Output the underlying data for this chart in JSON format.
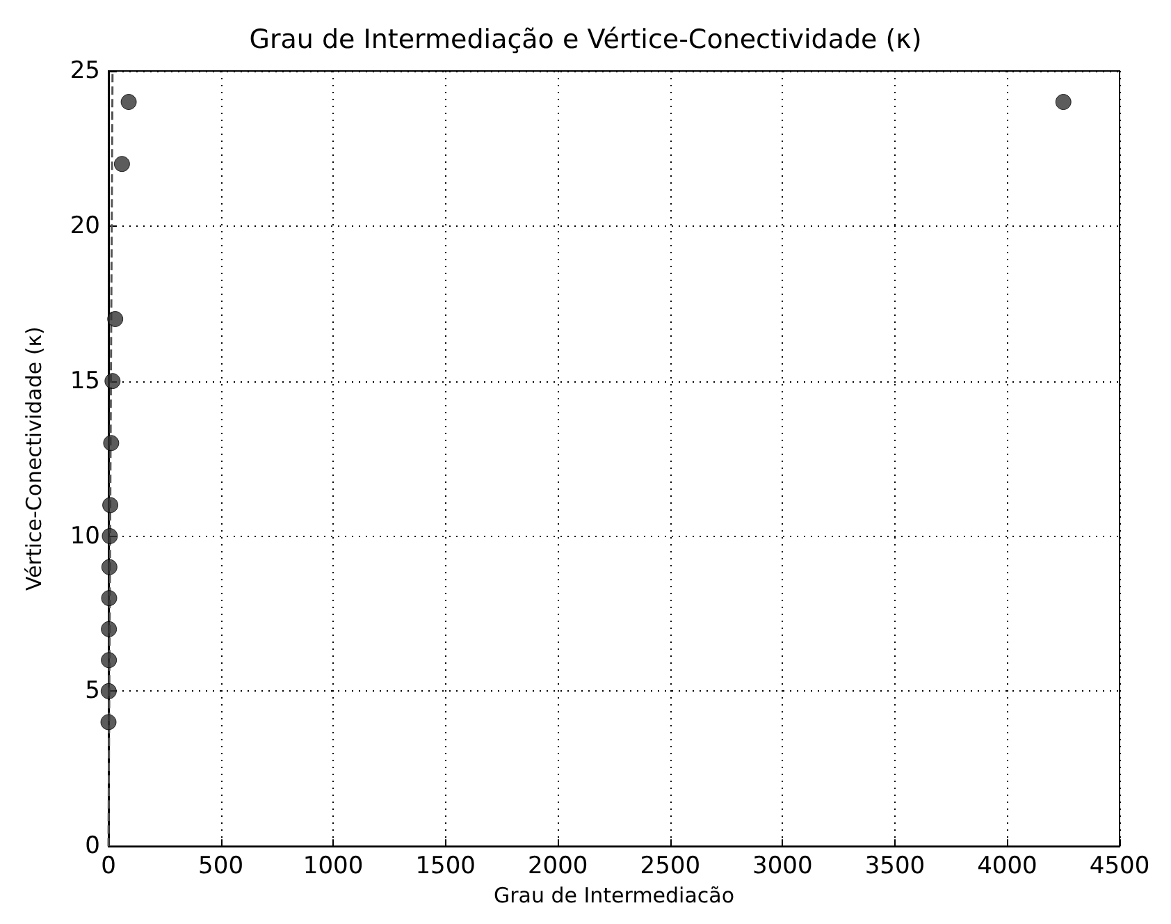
{
  "chart_data": {
    "type": "scatter",
    "title": "Grau de Intermediação e Vértice-Conectividade (κ)",
    "xlabel": "Grau de Intermediacão",
    "ylabel": "Vértice-Conectividade (κ)",
    "series": [
      {
        "color": "#333333",
        "marker": "circle",
        "x": [
          0,
          1,
          2,
          2,
          3,
          4,
          6,
          8,
          12,
          18,
          30,
          60,
          90,
          4250
        ],
        "values": [
          4,
          5,
          6,
          7,
          8,
          9,
          10,
          11,
          13,
          15,
          17,
          22,
          24,
          24
        ]
      },
      {
        "type": "line",
        "color": "#555555",
        "marker": "none",
        "line_style": "dashed",
        "x": [
          0,
          18
        ],
        "values": [
          0,
          25
        ]
      }
    ],
    "xlim": [
      0,
      4500
    ],
    "xticks": [
      0,
      500,
      1000,
      1500,
      2000,
      2500,
      3000,
      3500,
      4000,
      4500
    ],
    "ylim": [
      0,
      25
    ],
    "yticks": [
      0,
      5,
      10,
      15,
      20,
      25
    ],
    "grid": true
  }
}
